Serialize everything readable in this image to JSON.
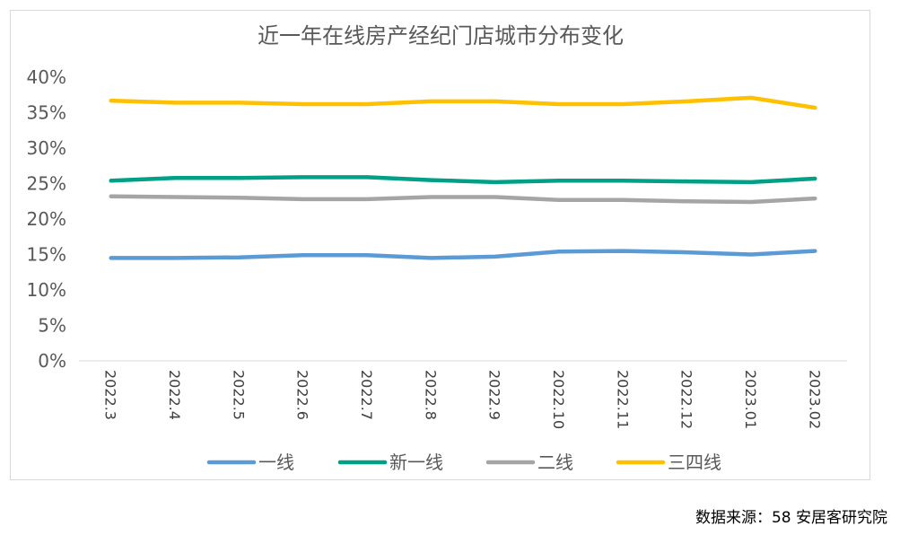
{
  "chart_data": {
    "type": "line",
    "title": "近一年在线房产经纪门店城市分布变化",
    "xlabel": "",
    "ylabel": "",
    "ylim": [
      0,
      40
    ],
    "yticks": [
      "0%",
      "5%",
      "10%",
      "15%",
      "20%",
      "25%",
      "30%",
      "35%",
      "40%"
    ],
    "ytick_values": [
      0,
      5,
      10,
      15,
      20,
      25,
      30,
      35,
      40
    ],
    "categories": [
      "2022.3",
      "2022.4",
      "2022.5",
      "2022.6",
      "2022.7",
      "2022.8",
      "2022.9",
      "2022.10",
      "2022.11",
      "2022.12",
      "2023.01",
      "2023.02"
    ],
    "series": [
      {
        "name": "一线",
        "color": "#5b9bd5",
        "values": [
          14.5,
          14.5,
          14.6,
          14.9,
          14.9,
          14.5,
          14.7,
          15.4,
          15.5,
          15.3,
          15.0,
          15.5
        ]
      },
      {
        "name": "新一线",
        "color": "#00a086",
        "values": [
          25.4,
          25.8,
          25.8,
          25.9,
          25.9,
          25.5,
          25.2,
          25.4,
          25.4,
          25.3,
          25.2,
          25.7
        ]
      },
      {
        "name": "二线",
        "color": "#a5a5a5",
        "values": [
          23.2,
          23.1,
          23.0,
          22.8,
          22.8,
          23.1,
          23.1,
          22.7,
          22.7,
          22.5,
          22.4,
          22.9
        ]
      },
      {
        "name": "三四线",
        "color": "#ffc000",
        "values": [
          36.7,
          36.4,
          36.4,
          36.2,
          36.2,
          36.6,
          36.6,
          36.2,
          36.2,
          36.6,
          37.1,
          35.7
        ]
      }
    ],
    "legend": "bottom",
    "grid": false
  },
  "source": "数据来源：58 安居客研究院"
}
